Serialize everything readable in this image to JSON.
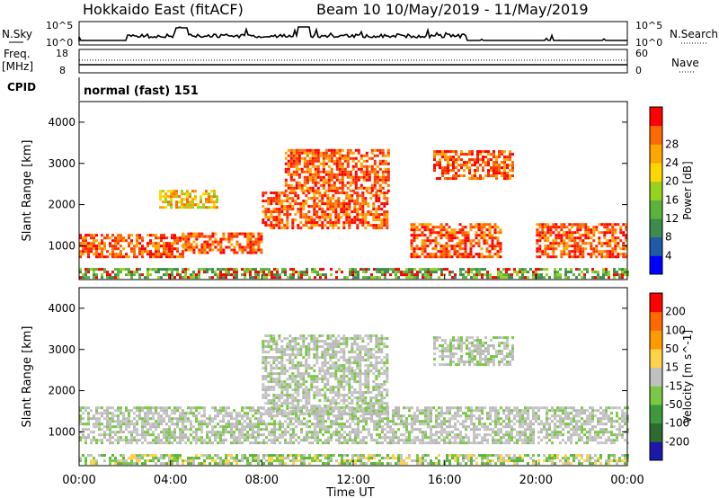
{
  "header": {
    "station": "Hokkaido East (fitACF)",
    "beam_date": "Beam 10  10/May/2019 - 11/May/2019"
  },
  "panels": {
    "nsky_label": "N.Sky",
    "nsearch_label": "N.Search",
    "freq_label": "Freq.",
    "freq_unit": "[MHz]",
    "nave_label": "Nave",
    "cpid_label": "CPID",
    "cpid_value": "normal (fast) 151",
    "noise_ticks_left": [
      "10^5",
      "10^0"
    ],
    "noise_ticks_right": [
      "10^5",
      "10^0"
    ],
    "freq_ticks": [
      "18",
      "8"
    ],
    "nave_ticks": [
      "60",
      "0"
    ]
  },
  "chart_data": [
    {
      "type": "heatmap",
      "name": "power",
      "ylabel": "Slant Range [km]",
      "y_ticks": [
        "1000",
        "2000",
        "3000",
        "4000"
      ],
      "ylim": [
        180,
        4500
      ],
      "xlim_hours": [
        0,
        24
      ],
      "colorbar": {
        "label": "Power [dB]",
        "ticks": [
          "4",
          "8",
          "12",
          "16",
          "20",
          "24",
          "28"
        ],
        "colors": [
          "#0000ff",
          "#1e5aa8",
          "#3c8c50",
          "#5ab43c",
          "#96d21e",
          "#ffd700",
          "#ffa500",
          "#ff6a00",
          "#ff0000"
        ]
      },
      "features": [
        {
          "t0": 0.0,
          "t1": 4.5,
          "r0": 700,
          "r1": 1250,
          "level": "high"
        },
        {
          "t0": 4.5,
          "t1": 8.0,
          "r0": 800,
          "r1": 1300,
          "level": "high"
        },
        {
          "t0": 3.5,
          "t1": 6.0,
          "r0": 1900,
          "r1": 2300,
          "level": "mid"
        },
        {
          "t0": 8.0,
          "t1": 13.5,
          "r0": 1400,
          "r1": 2300,
          "level": "high"
        },
        {
          "t0": 9.0,
          "t1": 13.5,
          "r0": 2300,
          "r1": 3300,
          "level": "high"
        },
        {
          "t0": 14.5,
          "t1": 18.5,
          "r0": 700,
          "r1": 1500,
          "level": "high"
        },
        {
          "t0": 15.5,
          "t1": 19.0,
          "r0": 2600,
          "r1": 3300,
          "level": "high"
        },
        {
          "t0": 20.0,
          "t1": 24.0,
          "r0": 700,
          "r1": 1500,
          "level": "high"
        },
        {
          "t0": 0.0,
          "t1": 24.0,
          "r0": 200,
          "r1": 400,
          "level": "low"
        }
      ]
    },
    {
      "type": "heatmap",
      "name": "velocity",
      "ylabel": "Slant Range [km]",
      "y_ticks": [
        "1000",
        "2000",
        "3000",
        "4000"
      ],
      "ylim": [
        180,
        4500
      ],
      "xlim_hours": [
        0,
        24
      ],
      "colorbar": {
        "label": "Velocity [m s^-1]",
        "ticks": [
          "200",
          "100",
          "50",
          "15",
          "-15",
          "-50",
          "-100",
          "-200"
        ],
        "colors": [
          "#1a1aaa",
          "#2f6a2f",
          "#3c9a3c",
          "#7ac843",
          "#c0c0c0",
          "#ffd24a",
          "#ff9a00",
          "#ff6a00",
          "#ff0000"
        ]
      },
      "features": [
        {
          "t0": 0.0,
          "t1": 24.0,
          "r0": 700,
          "r1": 1600,
          "level": "gray"
        },
        {
          "t0": 8.0,
          "t1": 13.5,
          "r0": 1400,
          "r1": 3300,
          "level": "gray"
        },
        {
          "t0": 15.5,
          "t1": 19.0,
          "r0": 2600,
          "r1": 3300,
          "level": "gray"
        },
        {
          "t0": 0.0,
          "t1": 24.0,
          "r0": 200,
          "r1": 400,
          "level": "green"
        }
      ]
    }
  ],
  "x_axis": {
    "ticks": [
      "00:00",
      "04:00",
      "08:00",
      "12:00",
      "16:00",
      "20:00",
      "00:00"
    ],
    "label": "Time UT"
  }
}
